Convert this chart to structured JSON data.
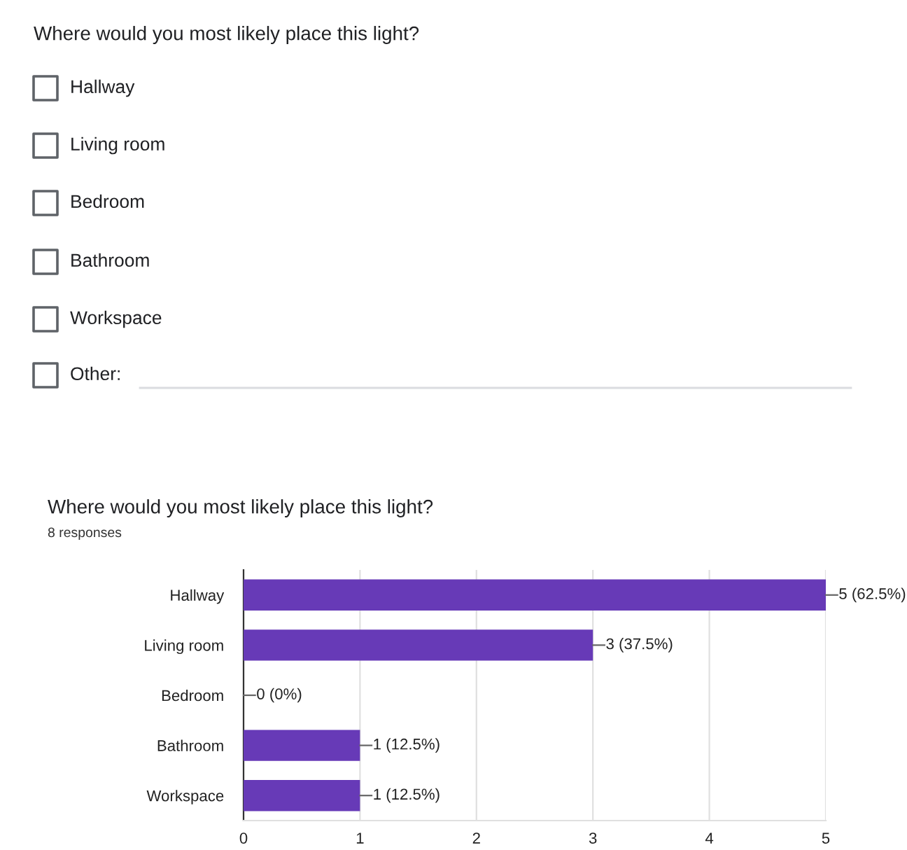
{
  "chart_data": [
    {
      "type": "other",
      "title": "Where would you most likely place this light?",
      "annotations": [
        "Hallway",
        "Living room",
        "Bedroom",
        "Bathroom",
        "Workspace",
        "Other:"
      ]
    },
    {
      "type": "bar",
      "orientation": "horizontal",
      "title": "Where would you most likely place this light?",
      "subtitle": "8 responses",
      "categories": [
        "Hallway",
        "Living room",
        "Bedroom",
        "Bathroom",
        "Workspace"
      ],
      "values": [
        5,
        3,
        0,
        1,
        1
      ],
      "value_labels": [
        "5 (62.5%)",
        "3 (37.5%)",
        "0 (0%)",
        "1 (12.5%)",
        "1 (12.5%)"
      ],
      "color": "#673ab7",
      "xlim": [
        0,
        5
      ],
      "xticks": [
        0,
        1,
        2,
        3,
        4,
        5
      ],
      "grid": "x",
      "legend": false
    }
  ]
}
